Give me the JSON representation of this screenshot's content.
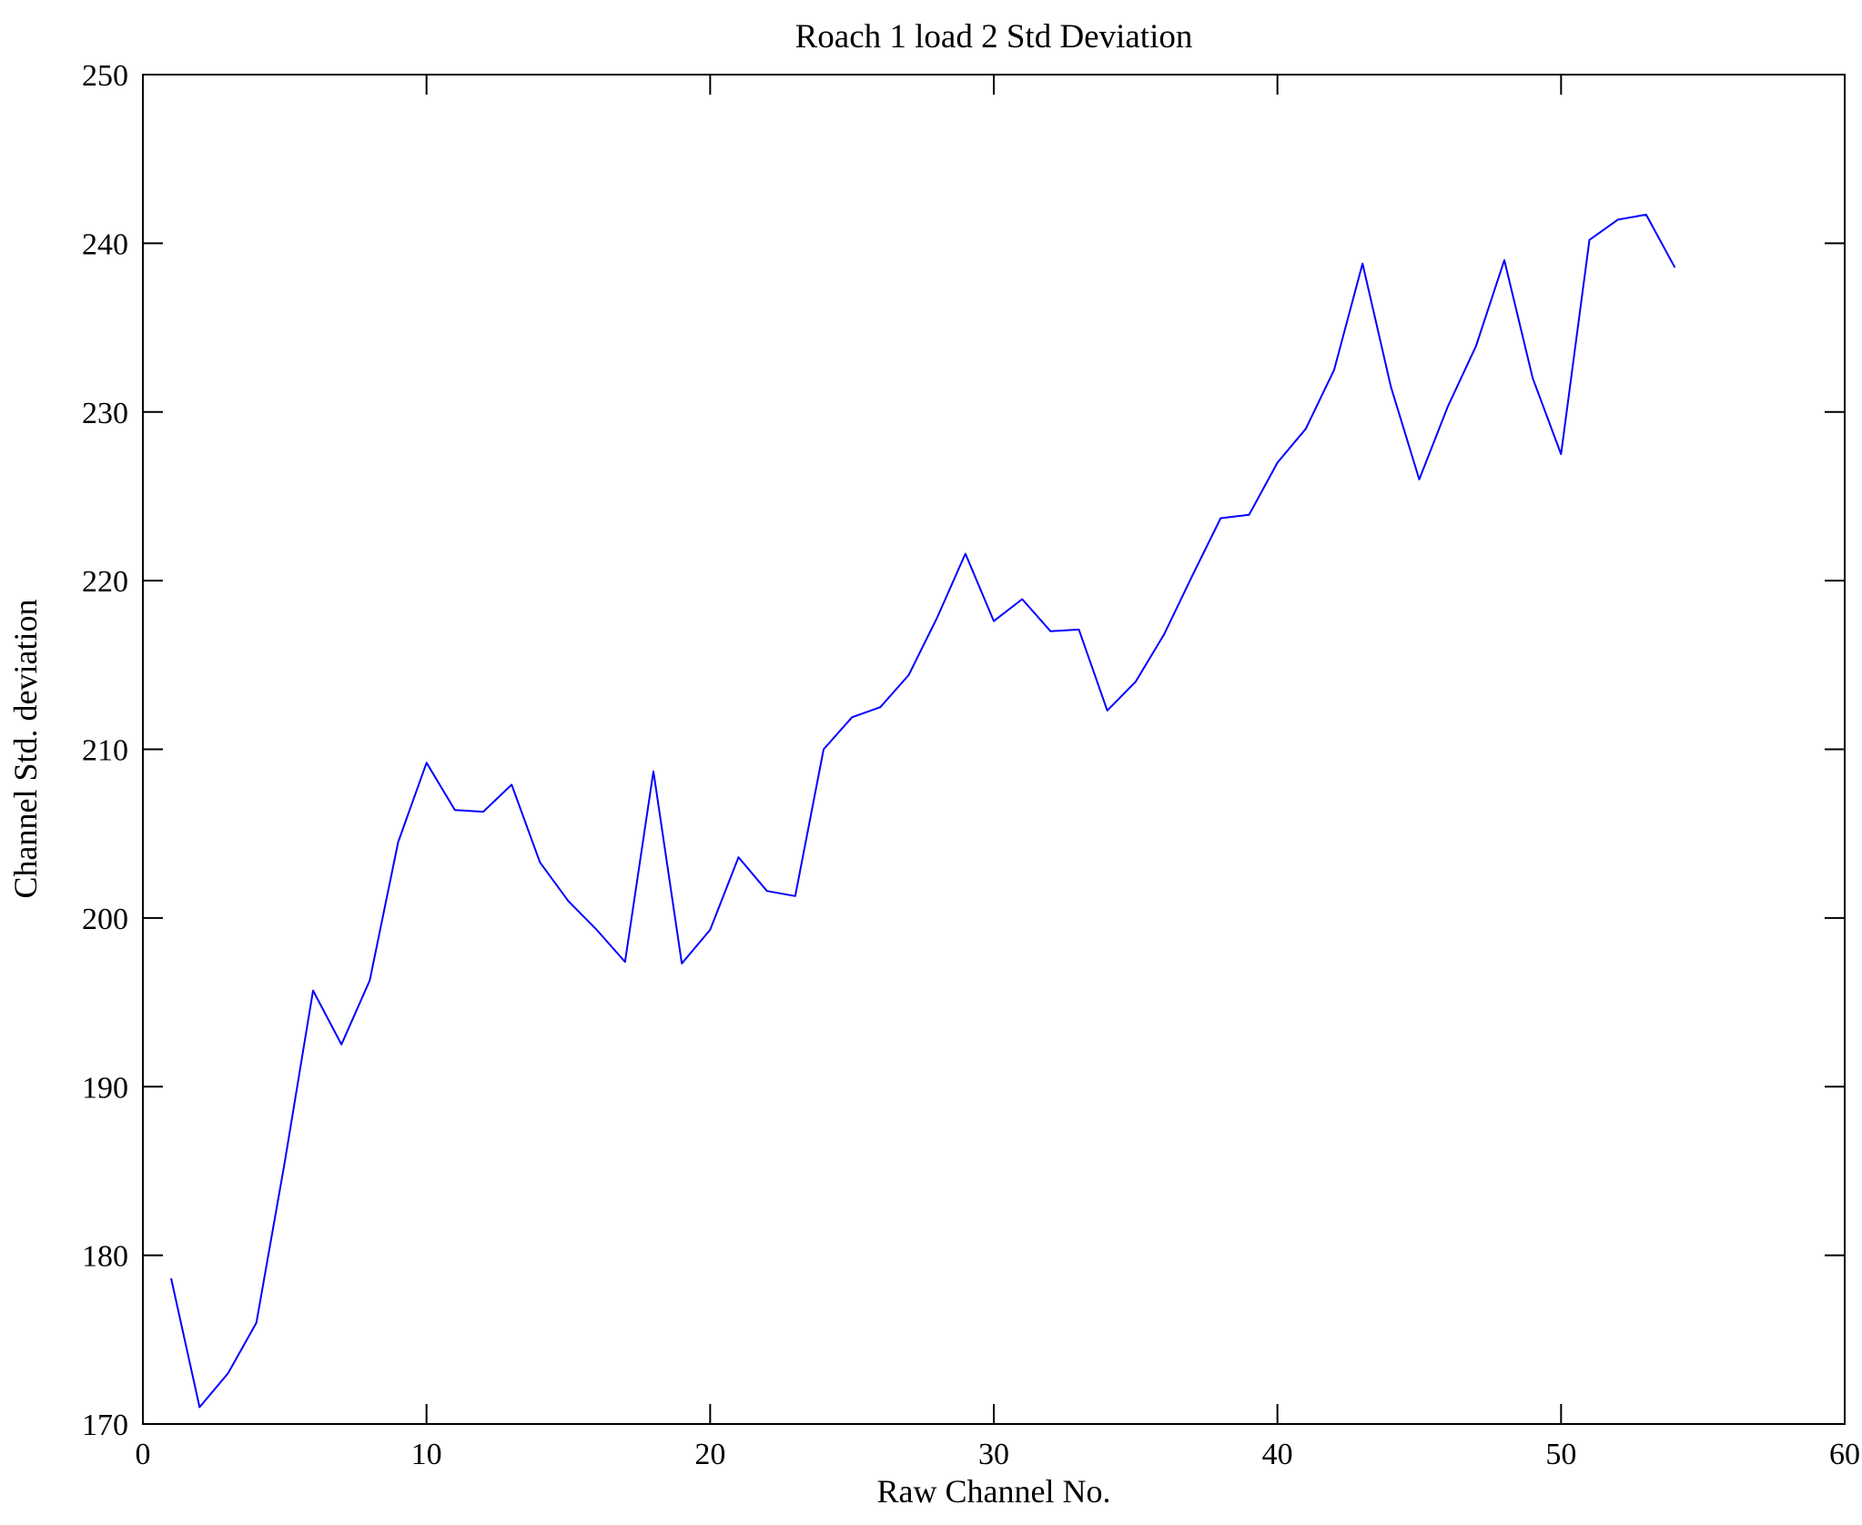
{
  "chart_data": {
    "type": "line",
    "title": "Roach 1 load 2 Std Deviation",
    "xlabel": "Raw Channel No.",
    "ylabel": "Channel Std. deviation",
    "xlim": [
      0,
      60
    ],
    "ylim": [
      170,
      250
    ],
    "xticks": [
      0,
      10,
      20,
      30,
      40,
      50,
      60
    ],
    "yticks": [
      170,
      180,
      190,
      200,
      210,
      220,
      230,
      240,
      250
    ],
    "grid": false,
    "legend": "none",
    "line_color": "#0000ff",
    "axis_color": "#000000",
    "x": [
      1,
      2,
      3,
      4,
      5,
      6,
      7,
      8,
      9,
      10,
      11,
      12,
      13,
      14,
      15,
      16,
      17,
      18,
      19,
      20,
      21,
      22,
      23,
      24,
      25,
      26,
      27,
      28,
      29,
      30,
      31,
      32,
      33,
      34,
      35,
      36,
      37,
      38,
      39,
      40,
      41,
      42,
      43,
      44,
      45,
      46,
      47,
      48,
      49,
      50,
      51,
      52,
      53,
      54
    ],
    "y": [
      178.6,
      171.0,
      173.0,
      176.0,
      185.5,
      195.7,
      192.5,
      196.3,
      204.5,
      209.2,
      206.4,
      206.3,
      207.9,
      203.3,
      201.0,
      199.3,
      197.4,
      208.7,
      197.3,
      199.3,
      203.6,
      201.6,
      201.3,
      210.0,
      211.9,
      212.5,
      214.4,
      217.8,
      221.6,
      217.6,
      218.9,
      217.0,
      217.1,
      212.3,
      214.0,
      216.8,
      220.3,
      223.7,
      223.9,
      227.0,
      229.0,
      232.5,
      238.8,
      231.5,
      226.0,
      230.3,
      233.9,
      239.0,
      232.0,
      227.5,
      240.2,
      241.4,
      241.7,
      238.6
    ]
  }
}
